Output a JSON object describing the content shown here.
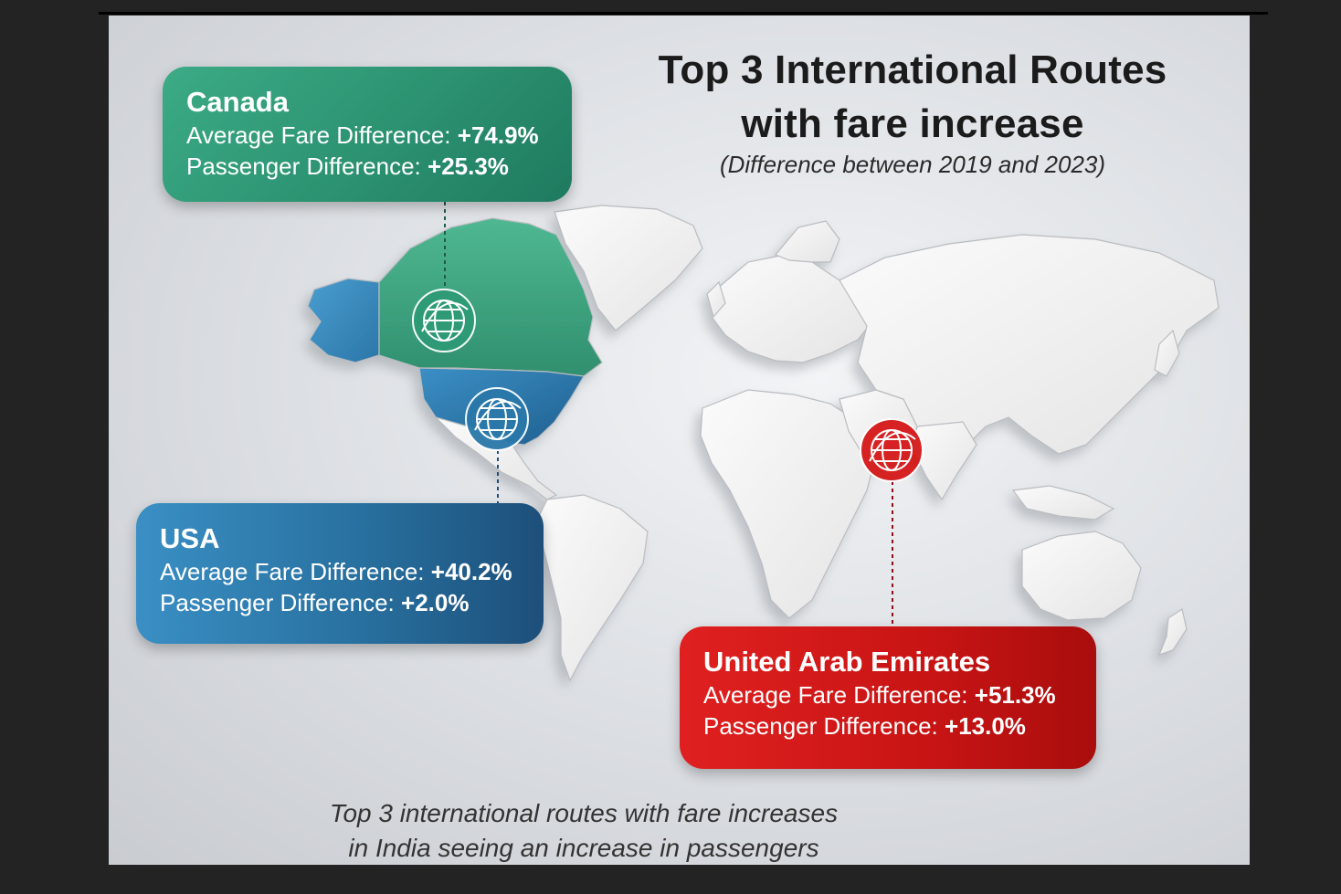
{
  "title": {
    "line1": "Top 3 International Routes",
    "line2": "with fare increase"
  },
  "subtitle": "(Difference between 2019 and 2023)",
  "routes": {
    "canada": {
      "name": "Canada",
      "fare_label": "Average Fare Difference:",
      "fare_value": "+74.9%",
      "passenger_label": "Passenger Difference:",
      "passenger_value": "+25.3%",
      "color": "#2e9a76",
      "icon": "globe-plane-icon"
    },
    "usa": {
      "name": "USA",
      "fare_label": "Average Fare Difference:",
      "fare_value": "+40.2%",
      "passenger_label": "Passenger Difference:",
      "passenger_value": "+2.0%",
      "color": "#2a78aa",
      "icon": "globe-plane-icon"
    },
    "uae": {
      "name": "United Arab Emirates",
      "fare_label": "Average Fare Difference:",
      "fare_value": "+51.3%",
      "passenger_label": "Passenger Difference:",
      "passenger_value": "+13.0%",
      "color": "#d51818",
      "icon": "globe-plane-icon"
    }
  },
  "footer": {
    "line1": "Top 3 international routes with fare increases",
    "line2": "in India seeing an increase in passengers"
  }
}
